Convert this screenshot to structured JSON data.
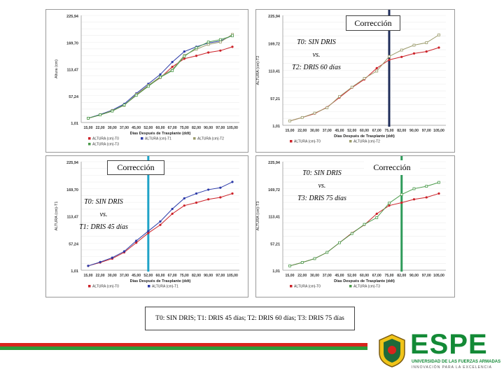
{
  "colors": {
    "t0": "#cc2229",
    "t1": "#2b3aa8",
    "t2": "#9a9a6a",
    "t3": "#4a9a4a",
    "line_t2": "#1f2d5a",
    "line_t1": "#1fa3c8",
    "line_t3": "#2f9b5a"
  },
  "annotations": {
    "p2_callout": "Corrección",
    "p2_overlay": [
      "T0: SIN DRIS",
      "vs.",
      "T2: DRIS 60 días"
    ],
    "p3_callout": "Corrección",
    "p3_overlay": [
      "T0: SIN DRIS",
      "vs.",
      "T1: DRIS 45 días"
    ],
    "p4_callout": "Corrección",
    "p4_overlay": [
      "T0: SIN DRIS",
      "vs.",
      "T3: DRIS 75 días"
    ]
  },
  "footer_note": "T0: SIN DRIS; T1: DRIS 45 días; T2: DRIS 60 días; T3: DRIS 75 días",
  "logo": {
    "name": "ESPE",
    "subtitle": "UNIVERSIDAD DE LAS FUERZAS ARMADAS",
    "tagline": "INNOVACIÓN PARA LA EXCELENCIA"
  },
  "chart_data": [
    {
      "type": "line",
      "xlabel": "Días Después de Trasplante (ddt)",
      "ylabel": "Altura (cm)",
      "categories": [
        "15,00",
        "22,00",
        "30,00",
        "37,00",
        "45,00",
        "52,00",
        "60,00",
        "67,00",
        "75,00",
        "82,00",
        "90,00",
        "97,00",
        "105,00"
      ],
      "yticks": [
        "1,01",
        "57,24",
        "113,47",
        "169,70",
        "225,94"
      ],
      "ylim": [
        1.01,
        225.94
      ],
      "series": [
        {
          "name": "ALTURA (cm)-T0",
          "key": "t0",
          "values": [
            10,
            17,
            25,
            38,
            58,
            78,
            95,
            118,
            135,
            141,
            148,
            152,
            160
          ]
        },
        {
          "name": "ALTURA (cm)-T1",
          "key": "t1",
          "values": [
            10,
            18,
            27,
            40,
            62,
            82,
            102,
            128,
            150,
            160,
            168,
            172,
            184
          ]
        },
        {
          "name": "ALTURA (cm)-T2",
          "key": "t2",
          "values": [
            10,
            17,
            26,
            37,
            60,
            79,
            97,
            112,
            142,
            155,
            165,
            170,
            186
          ]
        },
        {
          "name": "ALTURA (cm)-T3",
          "key": "t3",
          "values": [
            10,
            17,
            25,
            38,
            58,
            77,
            96,
            110,
            140,
            158,
            170,
            175,
            183
          ]
        }
      ]
    },
    {
      "type": "line",
      "xlabel": "Días Después de Trasplante (ddt)",
      "ylabel": "ALTURA (cm)-T2",
      "categories": [
        "15,00",
        "22,00",
        "30,00",
        "37,00",
        "45,00",
        "52,00",
        "60,00",
        "67,00",
        "75,00",
        "82,00",
        "90,00",
        "97,00",
        "105,00"
      ],
      "yticks": [
        "1,01",
        "57,21",
        "113,41",
        "169,72",
        "225,94"
      ],
      "ylim": [
        1.01,
        225.94
      ],
      "series": [
        {
          "name": "ALTURA (cm)-T0",
          "key": "t0",
          "values": [
            10,
            17,
            25,
            38,
            58,
            78,
            95,
            118,
            135,
            141,
            148,
            152,
            160
          ]
        },
        {
          "name": "ALTURA (cm)-T2",
          "key": "t2",
          "values": [
            10,
            17,
            26,
            37,
            60,
            79,
            97,
            112,
            142,
            155,
            165,
            170,
            186
          ]
        }
      ],
      "vline_category": "75,00"
    },
    {
      "type": "line",
      "xlabel": "Días Después de Trasplante (ddt)",
      "ylabel": "ALTURA (cm)-T1",
      "categories": [
        "15,00",
        "22,00",
        "30,00",
        "37,00",
        "45,00",
        "52,00",
        "60,00",
        "67,00",
        "75,00",
        "82,00",
        "90,00",
        "97,00",
        "105,00"
      ],
      "yticks": [
        "1,01",
        "57,24",
        "113,47",
        "169,70",
        "225,94"
      ],
      "ylim": [
        1.01,
        225.94
      ],
      "series": [
        {
          "name": "ALTURA (cm)-T0",
          "key": "t0",
          "values": [
            10,
            17,
            25,
            38,
            58,
            78,
            95,
            118,
            135,
            141,
            148,
            152,
            160
          ]
        },
        {
          "name": "ALTURA (cm)-T1",
          "key": "t1",
          "values": [
            10,
            18,
            27,
            40,
            62,
            82,
            102,
            128,
            150,
            160,
            168,
            172,
            184
          ]
        }
      ],
      "vline_category": "52,00"
    },
    {
      "type": "line",
      "xlabel": "Días Después de Trasplante (ddt)",
      "ylabel": "ALTURA (cm)-T3",
      "categories": [
        "15,00",
        "22,00",
        "30,00",
        "37,00",
        "45,00",
        "52,00",
        "60,00",
        "67,00",
        "75,00",
        "82,00",
        "90,00",
        "97,00",
        "105,00"
      ],
      "yticks": [
        "1,01",
        "57,21",
        "113,41",
        "169,72",
        "225,94"
      ],
      "ylim": [
        1.01,
        225.94
      ],
      "series": [
        {
          "name": "ALTURA (cm)-T0",
          "key": "t0",
          "values": [
            10,
            17,
            25,
            38,
            58,
            78,
            95,
            118,
            135,
            141,
            148,
            152,
            160
          ]
        },
        {
          "name": "ALTURA (cm)-T3",
          "key": "t3",
          "values": [
            10,
            17,
            25,
            38,
            58,
            77,
            96,
            110,
            140,
            158,
            170,
            175,
            183
          ]
        }
      ],
      "vline_category": "82,00"
    }
  ]
}
